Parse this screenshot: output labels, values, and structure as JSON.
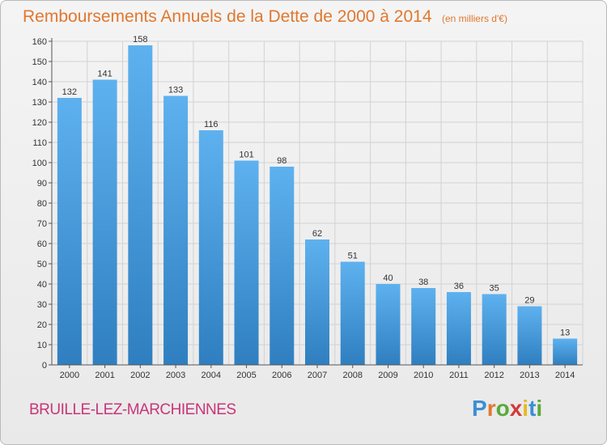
{
  "title": "Remboursements Annuels de la Dette de 2000 à 2014",
  "subtitle": "(en milliers d'€)",
  "town": "BRUILLE-LEZ-MARCHIENNES",
  "logo": {
    "letters": [
      "P",
      "r",
      "o",
      "x",
      "i",
      "t",
      "i"
    ],
    "colors": [
      "#3b8fd6",
      "#e0782e",
      "#5aaa3a",
      "#d43a3a",
      "#e8b81f",
      "#3b8fd6",
      "#5aaa3a"
    ]
  },
  "colors": {
    "bar_top": "#5eb1ef",
    "bar_bottom": "#2f7fc0",
    "title": "#e0782e",
    "town": "#c8357a"
  },
  "chart_data": {
    "type": "bar",
    "categories": [
      "2000",
      "2001",
      "2002",
      "2003",
      "2004",
      "2005",
      "2006",
      "2007",
      "2008",
      "2009",
      "2010",
      "2011",
      "2012",
      "2013",
      "2014"
    ],
    "values": [
      132,
      141,
      158,
      133,
      116,
      101,
      98,
      62,
      51,
      40,
      38,
      36,
      35,
      29,
      13
    ],
    "yticks": [
      0,
      10,
      20,
      30,
      40,
      50,
      60,
      70,
      80,
      90,
      100,
      110,
      120,
      130,
      140,
      150,
      160
    ],
    "ylim": [
      0,
      160
    ],
    "grid": true
  }
}
